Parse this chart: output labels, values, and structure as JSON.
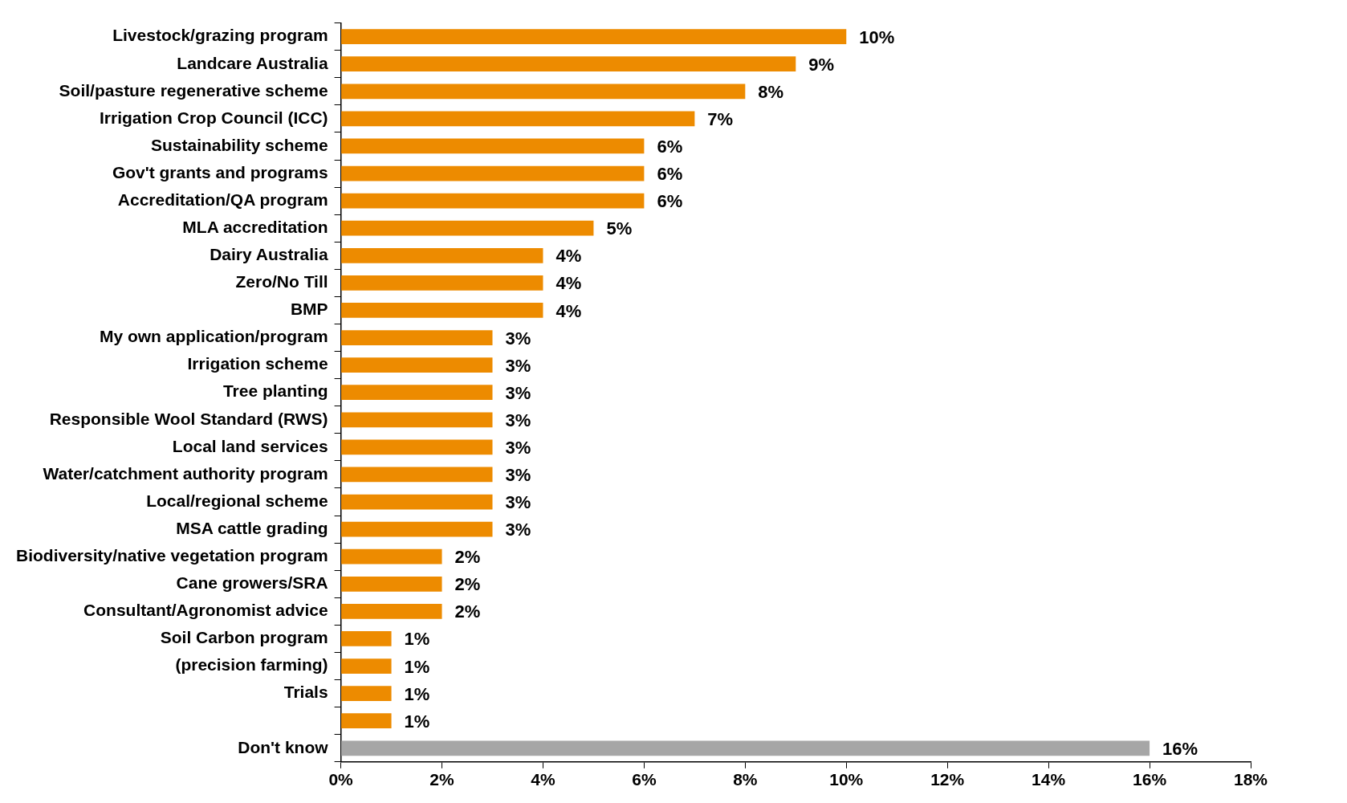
{
  "chart_data": {
    "type": "bar",
    "orientation": "horizontal",
    "categories": [
      "Livestock/grazing program",
      "Landcare Australia",
      "Soil/pasture regenerative scheme",
      "Irrigation Crop Council (ICC)",
      "Sustainability scheme",
      "Gov't grants and programs",
      "Accreditation/QA program",
      "MLA accreditation",
      "Dairy Australia",
      "Zero/No Till",
      "BMP",
      "My own application/program",
      "Irrigation scheme",
      "Tree planting",
      "Responsible Wool Standard (RWS)",
      "Local land services",
      "Water/catchment authority program",
      "Local/regional scheme",
      "MSA cattle grading",
      "Biodiversity/native vegetation program",
      "Cane growers/SRA",
      "Consultant/Agronomist advice",
      "Soil Carbon program",
      "(precision farming)",
      "Trials",
      null,
      "Don't know"
    ],
    "values": [
      10,
      9,
      8,
      7,
      6,
      6,
      6,
      5,
      4,
      4,
      4,
      3,
      3,
      3,
      3,
      3,
      3,
      3,
      3,
      2,
      2,
      2,
      1,
      1,
      1,
      1,
      16
    ],
    "colors": [
      "#ed8b00",
      "#ed8b00",
      "#ed8b00",
      "#ed8b00",
      "#ed8b00",
      "#ed8b00",
      "#ed8b00",
      "#ed8b00",
      "#ed8b00",
      "#ed8b00",
      "#ed8b00",
      "#ed8b00",
      "#ed8b00",
      "#ed8b00",
      "#ed8b00",
      "#ed8b00",
      "#ed8b00",
      "#ed8b00",
      "#ed8b00",
      "#ed8b00",
      "#ed8b00",
      "#ed8b00",
      "#ed8b00",
      "#ed8b00",
      "#ed8b00",
      "#ed8b00",
      "#a6a6a6"
    ],
    "value_labels": [
      "10%",
      "9%",
      "8%",
      "7%",
      "6%",
      "6%",
      "6%",
      "5%",
      "4%",
      "4%",
      "4%",
      "3%",
      "3%",
      "3%",
      "3%",
      "3%",
      "3%",
      "3%",
      "3%",
      "2%",
      "2%",
      "2%",
      "1%",
      "1%",
      "1%",
      "1%",
      "16%"
    ],
    "xlim": [
      0,
      18
    ],
    "xticks": [
      {
        "value": 0,
        "label": "0%"
      },
      {
        "value": 2,
        "label": "2%"
      },
      {
        "value": 4,
        "label": "4%"
      },
      {
        "value": 6,
        "label": "6%"
      },
      {
        "value": 8,
        "label": "8%"
      },
      {
        "value": 10,
        "label": "10%"
      },
      {
        "value": 12,
        "label": "12%"
      },
      {
        "value": 14,
        "label": "14%"
      },
      {
        "value": 16,
        "label": "16%"
      },
      {
        "value": 18,
        "label": "18%"
      }
    ],
    "grid": false,
    "legend": false
  }
}
